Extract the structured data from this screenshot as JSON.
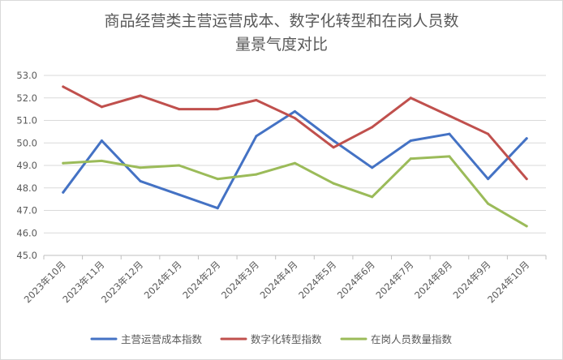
{
  "chart_data": {
    "type": "line",
    "title_lines": [
      "商品经营类主营运营成本、数字化转型和在岗人员数",
      "量景气度对比"
    ],
    "categories": [
      "2023年10月",
      "2023年11月",
      "2023年12月",
      "2024年1月",
      "2024年2月",
      "2024年3月",
      "2024年4月",
      "2024年5月",
      "2024年6月",
      "2024年7月",
      "2024年8月",
      "2024年9月",
      "2024年10月"
    ],
    "y_ticks": [
      "45.0",
      "46.0",
      "47.0",
      "48.0",
      "49.0",
      "50.0",
      "51.0",
      "52.0",
      "53.0"
    ],
    "ylim": [
      45,
      53
    ],
    "grid": true,
    "legend_position": "bottom",
    "series": [
      {
        "name": "主营运营成本指数",
        "color": "#4472c4",
        "values": [
          47.8,
          50.1,
          48.3,
          47.7,
          47.1,
          50.3,
          51.4,
          50.1,
          48.9,
          50.1,
          50.4,
          48.4,
          50.2
        ]
      },
      {
        "name": "数字化转型指数",
        "color": "#c0504d",
        "values": [
          52.5,
          51.6,
          52.1,
          51.5,
          51.5,
          51.9,
          51.1,
          49.8,
          50.7,
          52.0,
          51.2,
          50.4,
          48.4
        ]
      },
      {
        "name": "在岗人员数量指数",
        "color": "#9bbb59",
        "values": [
          49.1,
          49.2,
          48.9,
          49.0,
          48.4,
          48.6,
          49.1,
          48.2,
          47.6,
          49.3,
          49.4,
          47.3,
          46.3
        ]
      }
    ]
  }
}
